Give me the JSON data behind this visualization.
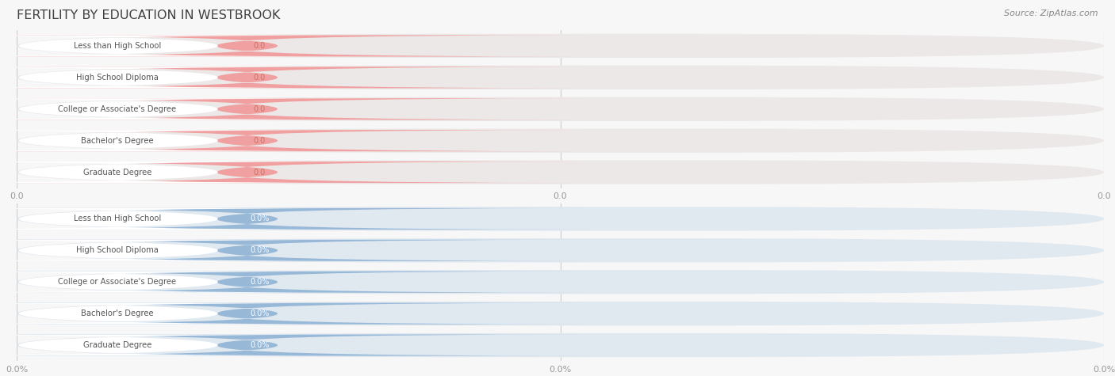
{
  "title": "FERTILITY BY EDUCATION IN WESTBROOK",
  "source": "Source: ZipAtlas.com",
  "categories": [
    "Less than High School",
    "High School Diploma",
    "College or Associate's Degree",
    "Bachelor's Degree",
    "Graduate Degree"
  ],
  "top_values": [
    0.0,
    0.0,
    0.0,
    0.0,
    0.0
  ],
  "bottom_values": [
    0.0,
    0.0,
    0.0,
    0.0,
    0.0
  ],
  "top_bar_color": "#f0a0a0",
  "top_bg_color": "#ece8e8",
  "top_value_color": "#cc7060",
  "bottom_bar_color": "#98b8d8",
  "bottom_bg_color": "#e0e8f0",
  "bottom_value_color": "#ffffff",
  "fig_bg_color": "#f7f7f7",
  "row_bg_color": "#e8e8e8",
  "title_color": "#404040",
  "tick_color": "#999999",
  "grid_color": "#cccccc",
  "source_color": "#888888"
}
